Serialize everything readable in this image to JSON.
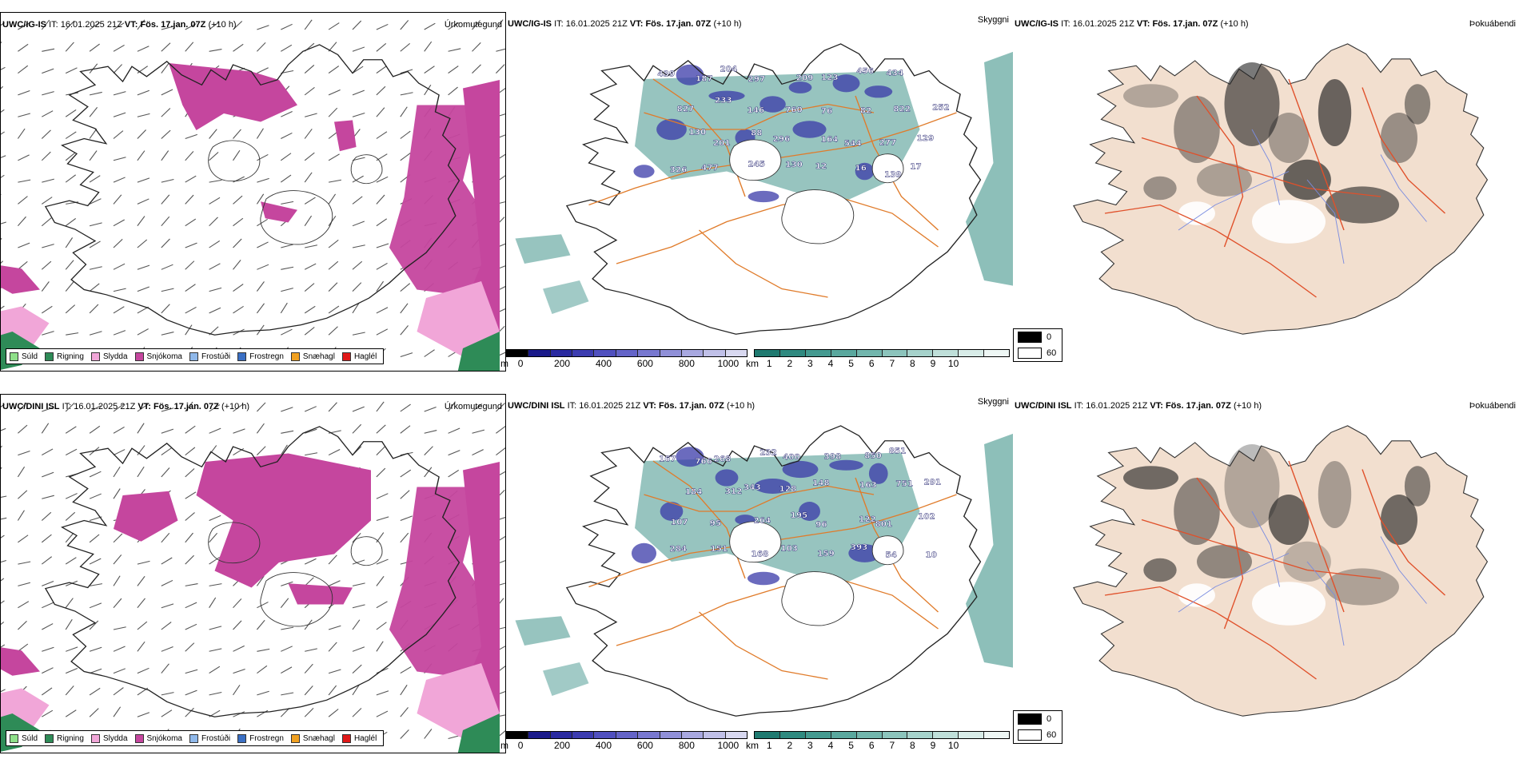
{
  "rows": [
    {
      "model": "UWC/IG-IS",
      "it_label": "IT:",
      "it_value": "16.01.2025 21Z",
      "vt_label": "VT:",
      "vt_value": "Fös. 17.jan. 07Z",
      "lead": "(+10 h)"
    },
    {
      "model": "UWC/DINI ISL",
      "it_label": "IT:",
      "it_value": "16.01.2025 21Z",
      "vt_label": "VT:",
      "vt_value": "Fös. 17.jan. 07Z",
      "lead": "(+10 h)"
    }
  ],
  "panel_titles": {
    "precip_type": "Úrkomutegund",
    "visibility": "Skyggni",
    "fog": "Þokuábendi"
  },
  "precip_legend": [
    {
      "label": "Súld",
      "color": "#8fe08a"
    },
    {
      "label": "Rigning",
      "color": "#2e8b57"
    },
    {
      "label": "Slydda",
      "color": "#f1a6d8"
    },
    {
      "label": "Snjókoma",
      "color": "#c5469e"
    },
    {
      "label": "Frostúði",
      "color": "#8fb8ea"
    },
    {
      "label": "Frostregn",
      "color": "#3a6fc4"
    },
    {
      "label": "Snæhagl",
      "color": "#f0a020"
    },
    {
      "label": "Haglél",
      "color": "#e01818"
    }
  ],
  "cloud_base_bar": {
    "unit": "m",
    "ticks": [
      "0",
      "200",
      "400",
      "600",
      "800",
      "1000"
    ],
    "colors": [
      "#000000",
      "#1a1a8a",
      "#2a2aa0",
      "#3c3cb0",
      "#5050bf",
      "#6464c8",
      "#7878d0",
      "#9090d8",
      "#a8a8e0",
      "#c0c0e8",
      "#d8d8f0"
    ]
  },
  "visibility_bar": {
    "unit": "km",
    "ticks": [
      "1",
      "2",
      "3",
      "4",
      "5",
      "6",
      "7",
      "8",
      "9",
      "10"
    ],
    "colors": [
      "#1f7a70",
      "#2f8a80",
      "#449a90",
      "#5aa89e",
      "#72b6ad",
      "#8cc4bc",
      "#a6d2cb",
      "#bfdfd9",
      "#d8ece8",
      "#eef7f5"
    ]
  },
  "fog_legend": [
    {
      "label": "0",
      "color": "#000000"
    },
    {
      "label": "60",
      "color": "#ffffff"
    }
  ],
  "cloud_base_labels_top": [
    "439",
    "187",
    "204",
    "297",
    "209",
    "123",
    "456",
    "434",
    "252",
    "827",
    "233",
    "146",
    "760",
    "76",
    "82",
    "822",
    "129",
    "130",
    "201",
    "88",
    "296",
    "164",
    "544",
    "277",
    "17",
    "326",
    "477",
    "245",
    "130",
    "12",
    "16",
    "139"
  ],
  "cloud_base_labels_bottom": [
    "167",
    "766",
    "268",
    "232",
    "400",
    "398",
    "850",
    "851",
    "291",
    "184",
    "312",
    "343",
    "128",
    "148",
    "163",
    "751",
    "102",
    "107",
    "95",
    "264",
    "195",
    "96",
    "122",
    "801",
    "10",
    "284",
    "151",
    "168",
    "103",
    "159",
    "393",
    "54"
  ],
  "colors": {
    "precip_snow": "#c5469e",
    "precip_sleet": "#f1a6d8",
    "precip_rain": "#2e8b57",
    "vis_low": "#2f8a80",
    "road": "#e07b2a",
    "land_fog": "#f2dfcf",
    "fog_border": "#e0502a",
    "river": "#7a8ce0"
  }
}
